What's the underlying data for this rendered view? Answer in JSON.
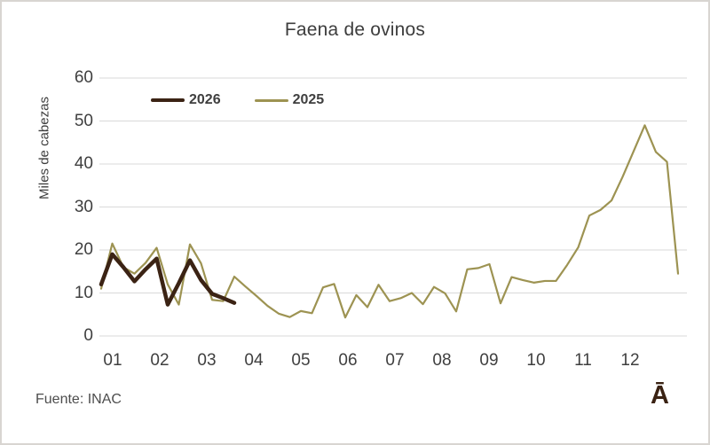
{
  "title": "Faena de ovinos",
  "y_axis_title": "Miles de cabezas",
  "source_note": "Fuente: INAC",
  "logo_glyph": "Ā",
  "colors": {
    "series_2026": "#3B2314",
    "series_2025": "#9D9352",
    "gridline": "#D9D9D9",
    "tick_text": "#3F3F3F",
    "title_text": "#3D3D3D",
    "source_text": "#4D4D4D",
    "background": "#FFFFFF"
  },
  "chart_data": {
    "type": "line",
    "title": "Faena de ovinos",
    "xlabel": "",
    "ylabel": "Miles de cabezas",
    "ylim": [
      0,
      60
    ],
    "yticks": [
      0,
      10,
      20,
      30,
      40,
      50,
      60
    ],
    "xticks": [
      "01",
      "02",
      "03",
      "04",
      "05",
      "06",
      "07",
      "08",
      "09",
      "10",
      "11",
      "12"
    ],
    "x_unit": "week-of-year",
    "grid": "horizontal",
    "legend_position": "top-left-inside",
    "series": [
      {
        "name": "2026",
        "color": "#3B2314",
        "stroke_width": 4.5,
        "values": [
          12,
          19,
          16,
          12.7,
          15.5,
          18,
          7.3,
          12.3,
          17.6,
          13,
          9.8,
          8.8,
          7.7
        ]
      },
      {
        "name": "2025",
        "color": "#9D9352",
        "stroke_width": 2.2,
        "values": [
          11,
          21.5,
          16,
          14.5,
          17,
          20.5,
          12,
          7.3,
          21.3,
          16.9,
          8.4,
          8.1,
          13.8,
          11.5,
          9.3,
          7,
          5.2,
          4.4,
          5.8,
          5.3,
          11.3,
          12.1,
          4.3,
          9.5,
          6.7,
          11.9,
          8.1,
          8.8,
          10,
          7.4,
          11.4,
          9.9,
          5.7,
          15.5,
          15.8,
          16.7,
          7.6,
          13.7,
          13,
          12.4,
          12.8,
          12.8,
          16.5,
          20.6,
          28,
          29.3,
          31.5,
          37,
          43,
          49,
          42.8,
          40.5,
          14.5
        ]
      }
    ]
  }
}
